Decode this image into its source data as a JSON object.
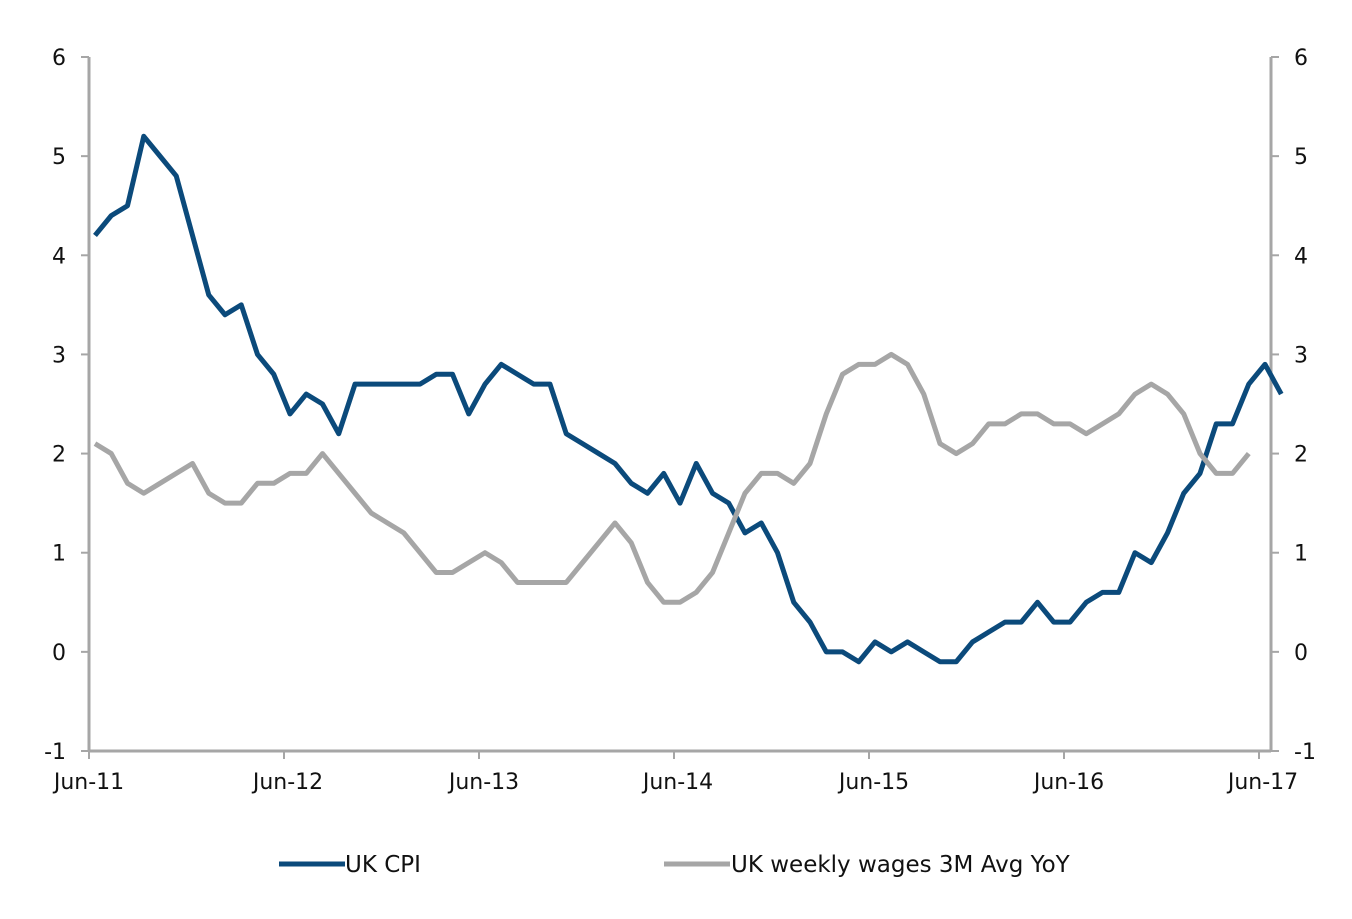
{
  "chart_data": {
    "type": "line",
    "x_ticks": [
      "Jun-11",
      "Jun-12",
      "Jun-13",
      "Jun-14",
      "Jun-15",
      "Jun-16",
      "Jun-17"
    ],
    "y_ticks": [
      "6",
      "5",
      "4",
      "3",
      "2",
      "1",
      "0",
      "-1"
    ],
    "ylim": [
      -1,
      6
    ],
    "y2lim": [
      -1,
      6
    ],
    "grid": false,
    "legend_position": "bottom",
    "series": [
      {
        "name": "UK CPI",
        "color": "#0b4a7b",
        "axis": "left",
        "values": [
          4.2,
          4.4,
          4.5,
          5.2,
          5.0,
          4.8,
          4.2,
          3.6,
          3.4,
          3.5,
          3.0,
          2.8,
          2.4,
          2.6,
          2.5,
          2.2,
          2.7,
          2.7,
          2.7,
          2.7,
          2.7,
          2.8,
          2.8,
          2.4,
          2.7,
          2.9,
          2.8,
          2.7,
          2.7,
          2.2,
          2.1,
          2.0,
          1.9,
          1.7,
          1.6,
          1.8,
          1.5,
          1.9,
          1.6,
          1.5,
          1.2,
          1.3,
          1.0,
          0.5,
          0.3,
          0.0,
          0.0,
          -0.1,
          0.1,
          0.0,
          0.1,
          0.0,
          -0.1,
          -0.1,
          0.1,
          0.2,
          0.3,
          0.3,
          0.5,
          0.3,
          0.3,
          0.5,
          0.6,
          0.6,
          1.0,
          0.9,
          1.2,
          1.6,
          1.8,
          2.3,
          2.3,
          2.7,
          2.9,
          2.6
        ]
      },
      {
        "name": "UK weekly wages 3M Avg YoY",
        "color": "#a6a6a6",
        "axis": "right",
        "values": [
          2.1,
          2.0,
          1.7,
          1.6,
          1.7,
          1.8,
          1.9,
          1.6,
          1.5,
          1.5,
          1.7,
          1.7,
          1.8,
          1.8,
          2.0,
          1.8,
          1.6,
          1.4,
          1.3,
          1.2,
          1.0,
          0.8,
          0.8,
          0.9,
          1.0,
          0.9,
          0.7,
          0.7,
          0.7,
          0.7,
          0.9,
          1.1,
          1.3,
          1.1,
          0.7,
          0.5,
          0.5,
          0.6,
          0.8,
          1.2,
          1.6,
          1.8,
          1.8,
          1.7,
          1.9,
          2.4,
          2.8,
          2.9,
          2.9,
          3.0,
          2.9,
          2.6,
          2.1,
          2.0,
          2.1,
          2.3,
          2.3,
          2.4,
          2.4,
          2.3,
          2.3,
          2.2,
          2.3,
          2.4,
          2.6,
          2.7,
          2.6,
          2.4,
          2.0,
          1.8,
          1.8,
          2.0
        ]
      }
    ]
  }
}
